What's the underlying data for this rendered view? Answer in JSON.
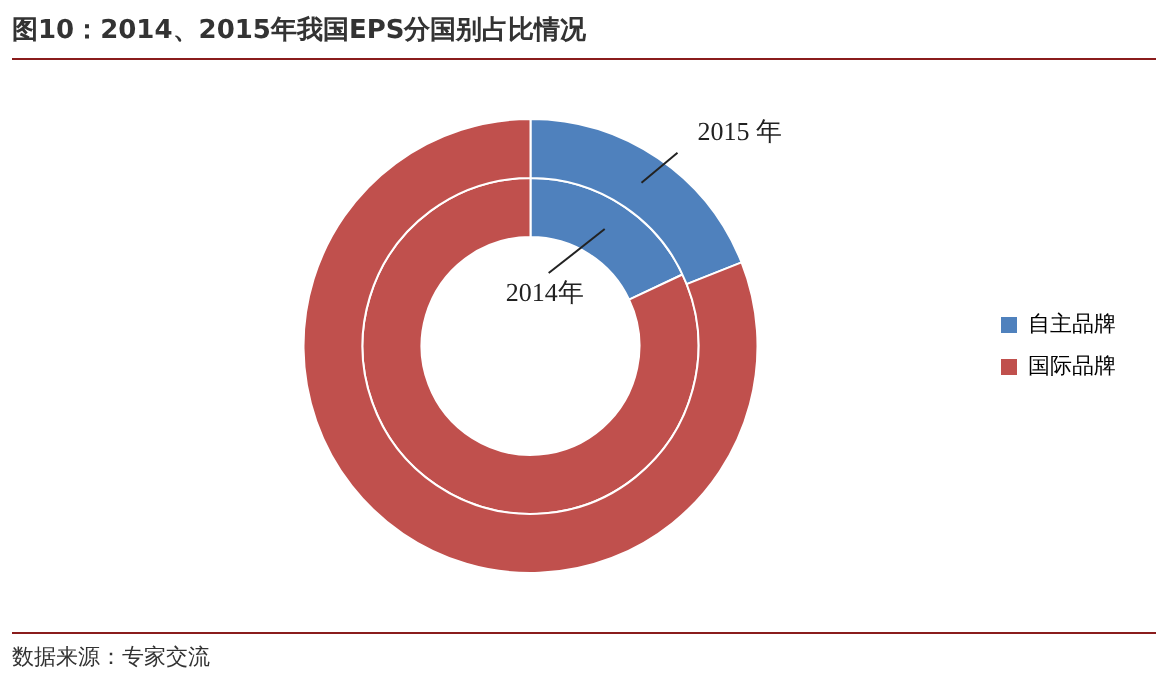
{
  "chart_data": {
    "type": "donut",
    "title": "图10：2014、2015年我国EPS分国别占比情况",
    "categories": [
      "自主品牌",
      "国际品牌"
    ],
    "series": [
      {
        "name": "2014年",
        "colors": [
          "#4f81bd",
          "#c0504d"
        ],
        "values": [
          18,
          82
        ]
      },
      {
        "name": "2015 年",
        "colors": [
          "#4f81bd",
          "#c0504d"
        ],
        "values": [
          19,
          81
        ]
      }
    ],
    "legend": "right",
    "annotations": [
      "数据来源：专家交流"
    ]
  }
}
